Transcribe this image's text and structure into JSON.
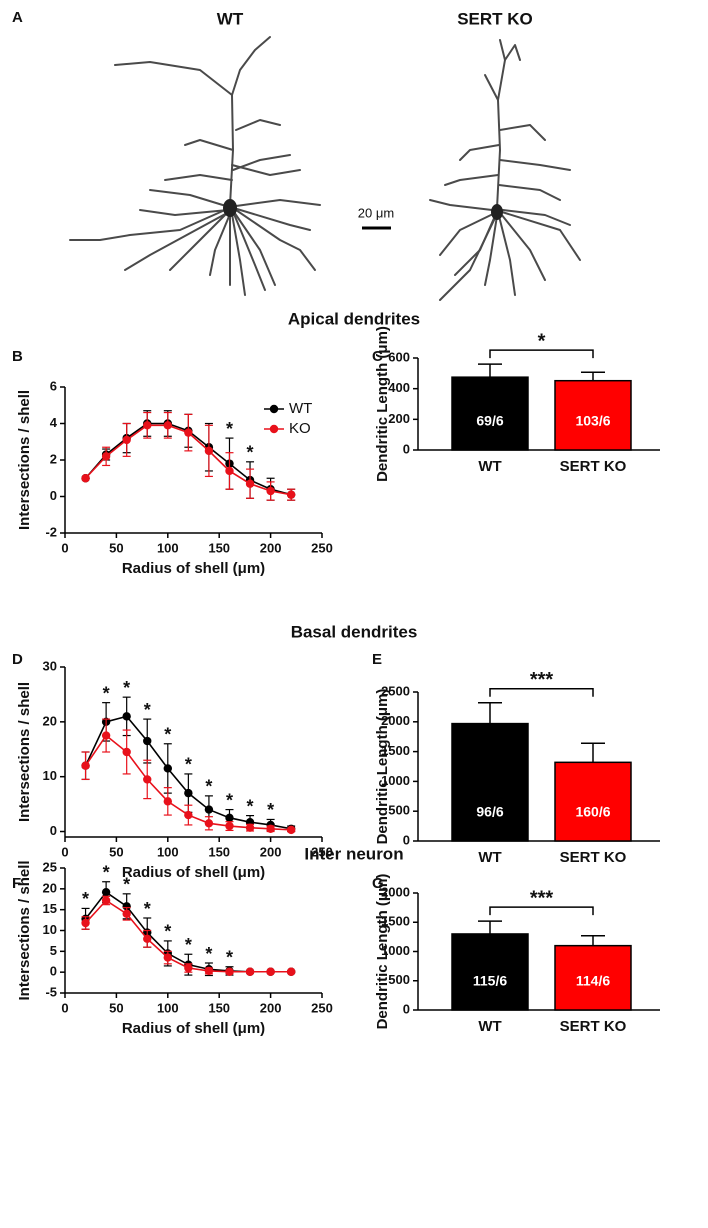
{
  "panel_a": {
    "label": "A",
    "titles": [
      "WT",
      "SERT KO"
    ],
    "scale_bar": "20 μm"
  },
  "sections": [
    "Apical dendrites",
    "Basal dendrites",
    "Inter neuron"
  ],
  "chart_data": [
    {
      "type": "line",
      "panel": "B",
      "xlabel": "Radius of shell (μm)",
      "ylabel": "Intersections / shell",
      "x": [
        20,
        40,
        60,
        80,
        100,
        120,
        140,
        160,
        180,
        200,
        220
      ],
      "xlim": [
        0,
        250
      ],
      "xticks": [
        0,
        50,
        100,
        150,
        200,
        250
      ],
      "ylim": [
        -2,
        6
      ],
      "yticks": [
        -2,
        0,
        2,
        4,
        6
      ],
      "legend": "upper right",
      "series": [
        {
          "name": "WT",
          "color": "#000000",
          "values": [
            1,
            2.3,
            3.2,
            4.0,
            4.0,
            3.6,
            2.7,
            1.8,
            0.9,
            0.4,
            0.1
          ],
          "errors": [
            0,
            0.3,
            0.8,
            0.7,
            0.7,
            0.9,
            1.3,
            1.4,
            1.0,
            0.6,
            0.3
          ]
        },
        {
          "name": "KO",
          "color": "#e8111b",
          "values": [
            1,
            2.2,
            3.1,
            3.9,
            3.9,
            3.5,
            2.5,
            1.4,
            0.7,
            0.3,
            0.1
          ],
          "errors": [
            0,
            0.5,
            0.9,
            0.7,
            0.7,
            1.0,
            1.4,
            1.0,
            0.8,
            0.5,
            0.3
          ]
        }
      ],
      "annotations": [
        {
          "x": 160,
          "text": "*"
        },
        {
          "x": 180,
          "text": "*"
        }
      ]
    },
    {
      "type": "bar",
      "panel": "C",
      "ylabel": "Dendritic Length (μm)",
      "categories": [
        "WT",
        "SERT KO"
      ],
      "values": [
        475,
        452
      ],
      "errors": [
        85,
        55
      ],
      "colors": [
        "#000000",
        "#ff0000"
      ],
      "bar_labels": [
        "69/6",
        "103/6"
      ],
      "significance": "*",
      "ylim": [
        0,
        600
      ],
      "yticks": [
        0,
        200,
        400,
        600
      ]
    },
    {
      "type": "line",
      "panel": "D",
      "xlabel": "Radius of shell (μm)",
      "ylabel": "Intersections / shell",
      "x": [
        20,
        40,
        60,
        80,
        100,
        120,
        140,
        160,
        180,
        200,
        220
      ],
      "xlim": [
        0,
        250
      ],
      "xticks": [
        0,
        50,
        100,
        150,
        200,
        250
      ],
      "ylim": [
        -1,
        30
      ],
      "yticks": [
        0,
        10,
        20,
        30
      ],
      "series": [
        {
          "color": "#000000",
          "values": [
            12,
            20,
            21,
            16.5,
            11.5,
            7,
            4,
            2.5,
            1.7,
            1.2,
            0.5
          ],
          "errors": [
            2.5,
            3.5,
            3.5,
            4,
            4.5,
            3.5,
            2.5,
            1.5,
            1.2,
            1,
            0.5
          ]
        },
        {
          "color": "#e8111b",
          "values": [
            12,
            17.5,
            14.5,
            9.5,
            5.5,
            3,
            1.5,
            1,
            0.7,
            0.5,
            0.3
          ],
          "errors": [
            2.5,
            3,
            4,
            3.5,
            2.5,
            1.8,
            1.2,
            0.8,
            0.6,
            0.5,
            0.3
          ]
        }
      ],
      "annotations": [
        {
          "x": 40,
          "text": "*"
        },
        {
          "x": 60,
          "text": "*"
        },
        {
          "x": 80,
          "text": "*"
        },
        {
          "x": 100,
          "text": "*"
        },
        {
          "x": 120,
          "text": "*"
        },
        {
          "x": 140,
          "text": "*"
        },
        {
          "x": 160,
          "text": "*"
        },
        {
          "x": 180,
          "text": "*"
        },
        {
          "x": 200,
          "text": "*"
        }
      ]
    },
    {
      "type": "bar",
      "panel": "E",
      "ylabel": "Dendritic Length (μm)",
      "categories": [
        "WT",
        "SERT KO"
      ],
      "values": [
        1970,
        1320
      ],
      "errors": [
        350,
        320
      ],
      "colors": [
        "#000000",
        "#ff0000"
      ],
      "bar_labels": [
        "96/6",
        "160/6"
      ],
      "significance": "***",
      "ylim": [
        0,
        2500
      ],
      "yticks": [
        0,
        500,
        1000,
        1500,
        2000,
        2500
      ]
    },
    {
      "type": "line",
      "panel": "F",
      "xlabel": "Radius of shell (μm)",
      "ylabel": "Intersections / shell",
      "x": [
        20,
        40,
        60,
        80,
        100,
        120,
        140,
        160,
        180,
        200,
        220
      ],
      "xlim": [
        0,
        250
      ],
      "xticks": [
        0,
        50,
        100,
        150,
        200,
        250
      ],
      "ylim": [
        -5,
        25
      ],
      "yticks": [
        -5,
        0,
        5,
        10,
        15,
        20,
        25
      ],
      "series": [
        {
          "color": "#000000",
          "values": [
            12.8,
            19.2,
            15.8,
            9.5,
            4.5,
            1.8,
            0.7,
            0.3,
            0.1,
            0.1,
            0.1
          ],
          "errors": [
            2.5,
            2.5,
            3,
            3.5,
            3,
            2.5,
            1.5,
            1,
            0.3,
            0.2,
            0.2
          ]
        },
        {
          "color": "#e8111b",
          "values": [
            11.8,
            17.2,
            14.0,
            8.0,
            3.5,
            1.0,
            0.3,
            0.1,
            0.1,
            0.1,
            0.1
          ],
          "errors": [
            1.5,
            1,
            1.5,
            2,
            1.5,
            1,
            0.7,
            0.4,
            0.2,
            0.2,
            0.2
          ]
        }
      ],
      "annotations": [
        {
          "x": 20,
          "text": "*"
        },
        {
          "x": 40,
          "text": "*"
        },
        {
          "x": 60,
          "text": "*"
        },
        {
          "x": 80,
          "text": "*"
        },
        {
          "x": 100,
          "text": "*"
        },
        {
          "x": 120,
          "text": "*"
        },
        {
          "x": 140,
          "text": "*"
        },
        {
          "x": 160,
          "text": "*"
        }
      ]
    },
    {
      "type": "bar",
      "panel": "G",
      "ylabel": "Dendritic Length (μm)",
      "categories": [
        "WT",
        "SERT KO"
      ],
      "values": [
        1300,
        1100
      ],
      "errors": [
        220,
        170
      ],
      "colors": [
        "#000000",
        "#ff0000"
      ],
      "bar_labels": [
        "115/6",
        "114/6"
      ],
      "significance": "***",
      "ylim": [
        0,
        2000
      ],
      "yticks": [
        0,
        500,
        1000,
        1500,
        2000
      ]
    }
  ]
}
